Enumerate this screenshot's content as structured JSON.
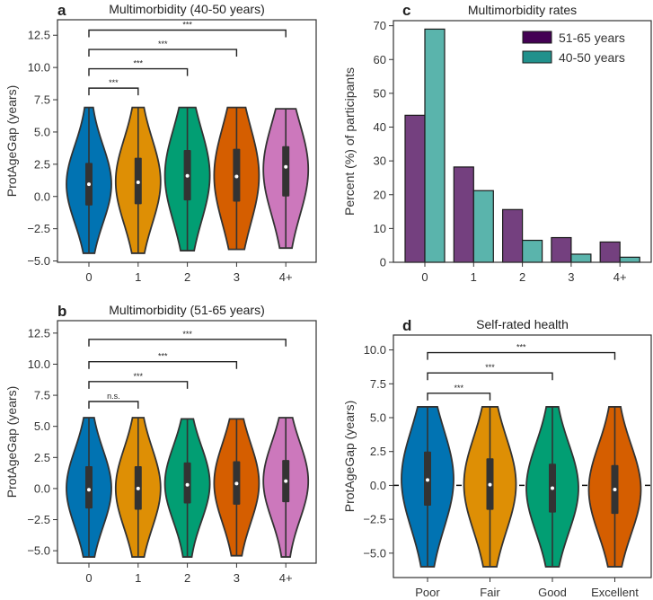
{
  "chart_data": [
    {
      "panel": "a",
      "type": "violin",
      "title": "Multimorbidity (40-50 years)",
      "ylabel": "ProtAgeGap (years)",
      "categories": [
        "0",
        "1",
        "2",
        "3",
        "4+"
      ],
      "yticks": [
        "12.5",
        "10.0",
        "7.5",
        "5.0",
        "2.5",
        "0.0",
        "−2.5",
        "−5.0"
      ],
      "ylim": [
        -5.1,
        13.7
      ],
      "colors": [
        "#0173b2",
        "#de8f05",
        "#029e73",
        "#d55e00",
        "#cc78bc"
      ],
      "violins": [
        {
          "min": -4.4,
          "q1": -0.7,
          "median": 0.95,
          "q3": 2.6,
          "max": 6.9
        },
        {
          "min": -4.4,
          "q1": -0.6,
          "median": 1.1,
          "q3": 3.0,
          "max": 6.9
        },
        {
          "min": -4.2,
          "q1": -0.3,
          "median": 1.6,
          "q3": 3.6,
          "max": 6.9
        },
        {
          "min": -4.1,
          "q1": -0.4,
          "median": 1.55,
          "q3": 3.7,
          "max": 6.9
        },
        {
          "min": -4.0,
          "q1": 0.0,
          "median": 2.3,
          "q3": 3.9,
          "max": 6.8
        }
      ],
      "brackets": [
        {
          "from": "0",
          "to": "1",
          "y": 8.4,
          "label": "***"
        },
        {
          "from": "0",
          "to": "2",
          "y": 9.9,
          "label": "***"
        },
        {
          "from": "0",
          "to": "3",
          "y": 11.4,
          "label": "***"
        },
        {
          "from": "0",
          "to": "4+",
          "y": 12.9,
          "label": "***"
        }
      ]
    },
    {
      "panel": "b",
      "type": "violin",
      "title": "Multimorbidity (51-65 years)",
      "ylabel": "ProtAgeGap (years)",
      "categories": [
        "0",
        "1",
        "2",
        "3",
        "4+"
      ],
      "yticks": [
        "12.5",
        "10.0",
        "7.5",
        "5.0",
        "2.5",
        "0.0",
        "−2.5",
        "−5.0"
      ],
      "ylim": [
        -6.0,
        13.5
      ],
      "colors": [
        "#0173b2",
        "#de8f05",
        "#029e73",
        "#d55e00",
        "#cc78bc"
      ],
      "violins": [
        {
          "min": -5.5,
          "q1": -1.6,
          "median": -0.1,
          "q3": 1.8,
          "max": 5.7
        },
        {
          "min": -5.5,
          "q1": -1.7,
          "median": 0.0,
          "q3": 1.8,
          "max": 5.7
        },
        {
          "min": -5.5,
          "q1": -1.2,
          "median": 0.3,
          "q3": 2.1,
          "max": 5.6
        },
        {
          "min": -5.4,
          "q1": -1.3,
          "median": 0.4,
          "q3": 2.2,
          "max": 5.6
        },
        {
          "min": -5.5,
          "q1": -1.1,
          "median": 0.6,
          "q3": 2.3,
          "max": 5.7
        }
      ],
      "brackets": [
        {
          "from": "0",
          "to": "1",
          "y": 7.0,
          "label": "n.s."
        },
        {
          "from": "0",
          "to": "2",
          "y": 8.6,
          "label": "***"
        },
        {
          "from": "0",
          "to": "3",
          "y": 10.2,
          "label": "***"
        },
        {
          "from": "0",
          "to": "4+",
          "y": 12.0,
          "label": "***"
        }
      ]
    },
    {
      "panel": "c",
      "type": "bar",
      "title": "Multimorbidity rates",
      "ylabel": "Percent (%) of participants",
      "categories": [
        "0",
        "1",
        "2",
        "3",
        "4+"
      ],
      "yticks": [
        "0",
        "10",
        "20",
        "30",
        "40",
        "50",
        "60",
        "70"
      ],
      "ylim": [
        0,
        71.5
      ],
      "legend_position": "top-right",
      "series": [
        {
          "name": "51-65 years",
          "values": [
            43.5,
            28.2,
            15.6,
            7.3,
            6.0
          ],
          "color": "#74407f",
          "legend_color": "#440154"
        },
        {
          "name": "40-50 years",
          "values": [
            69.0,
            21.2,
            6.5,
            2.4,
            1.5
          ],
          "color": "#5ab4ac",
          "legend_color": "#21918c"
        }
      ]
    },
    {
      "panel": "d",
      "type": "violin",
      "title": "Self-rated health",
      "ylabel": "ProtAgeGap (years)",
      "categories": [
        "Poor",
        "Fair",
        "Good",
        "Excellent"
      ],
      "yticks": [
        "10.0",
        "7.5",
        "5.0",
        "2.5",
        "0.0",
        "−2.5",
        "−5.0"
      ],
      "ylim": [
        -6.8,
        11.1
      ],
      "reference_line": 0,
      "colors": [
        "#0173b2",
        "#de8f05",
        "#029e73",
        "#d55e00"
      ],
      "violins": [
        {
          "min": -6.0,
          "q1": -1.5,
          "median": 0.4,
          "q3": 2.5,
          "max": 5.8
        },
        {
          "min": -6.0,
          "q1": -1.8,
          "median": 0.05,
          "q3": 2.0,
          "max": 5.8
        },
        {
          "min": -6.0,
          "q1": -2.0,
          "median": -0.2,
          "q3": 1.6,
          "max": 5.8
        },
        {
          "min": -6.0,
          "q1": -2.1,
          "median": -0.3,
          "q3": 1.5,
          "max": 5.8
        }
      ],
      "brackets": [
        {
          "from": "Poor",
          "to": "Fair",
          "y": 6.8,
          "label": "***"
        },
        {
          "from": "Poor",
          "to": "Good",
          "y": 8.3,
          "label": "***"
        },
        {
          "from": "Poor",
          "to": "Excellent",
          "y": 9.8,
          "label": "***"
        }
      ]
    }
  ]
}
